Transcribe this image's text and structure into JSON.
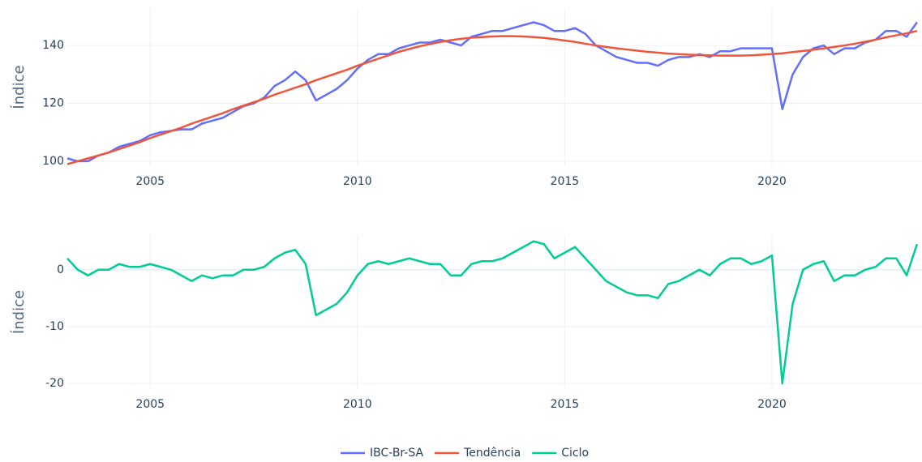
{
  "chart_data": [
    {
      "type": "line",
      "ylabel": "Índice",
      "x": [
        2003,
        2003.25,
        2003.5,
        2003.75,
        2004,
        2004.25,
        2004.5,
        2004.75,
        2005,
        2005.25,
        2005.5,
        2005.75,
        2006,
        2006.25,
        2006.5,
        2006.75,
        2007,
        2007.25,
        2007.5,
        2007.75,
        2008,
        2008.25,
        2008.5,
        2008.75,
        2009,
        2009.25,
        2009.5,
        2009.75,
        2010,
        2010.25,
        2010.5,
        2010.75,
        2011,
        2011.25,
        2011.5,
        2011.75,
        2012,
        2012.25,
        2012.5,
        2012.75,
        2013,
        2013.25,
        2013.5,
        2013.75,
        2014,
        2014.25,
        2014.5,
        2014.75,
        2015,
        2015.25,
        2015.5,
        2015.75,
        2016,
        2016.25,
        2016.5,
        2016.75,
        2017,
        2017.25,
        2017.5,
        2017.75,
        2018,
        2018.25,
        2018.5,
        2018.75,
        2019,
        2019.25,
        2019.5,
        2019.75,
        2020,
        2020.25,
        2020.5,
        2020.75,
        2021,
        2021.25,
        2021.5,
        2021.75,
        2022,
        2022.25,
        2022.5,
        2022.75,
        2023,
        2023.25,
        2023.5
      ],
      "series": [
        {
          "name": "IBC-Br-SA",
          "color": "#636efa",
          "values": [
            101,
            100,
            100,
            102,
            103,
            105,
            106,
            107,
            109,
            110,
            110.5,
            111,
            111,
            113,
            114,
            115,
            117,
            119,
            120,
            122,
            126,
            128,
            131,
            128,
            121,
            123,
            125,
            128,
            132,
            135,
            137,
            137,
            139,
            140,
            141,
            141,
            142,
            141,
            140,
            143,
            144,
            145,
            145,
            146,
            147,
            148,
            147,
            145,
            145,
            146,
            144,
            140,
            138,
            136,
            135,
            134,
            134,
            133,
            135,
            136,
            136,
            137,
            136,
            138,
            138,
            139,
            139,
            139,
            139,
            118,
            130,
            136,
            139,
            140,
            137,
            139,
            139,
            141,
            142,
            145,
            145,
            143,
            148
          ]
        },
        {
          "name": "Tendência",
          "color": "#ef553b",
          "values": [
            99,
            100,
            101,
            102,
            103,
            104.2,
            105.4,
            106.6,
            108,
            109.2,
            110.4,
            111.6,
            113,
            114.2,
            115.4,
            116.6,
            118,
            119.2,
            120.4,
            121.6,
            123,
            124.2,
            125.4,
            126.6,
            128,
            129.2,
            130.4,
            131.6,
            133,
            134.2,
            135.4,
            136.6,
            137.8,
            138.8,
            139.7,
            140.5,
            141.2,
            141.8,
            142.3,
            142.7,
            142.9,
            143.1,
            143.2,
            143.2,
            143.1,
            142.9,
            142.6,
            142.2,
            141.7,
            141.2,
            140.6,
            140,
            139.5,
            139,
            138.6,
            138.2,
            137.8,
            137.5,
            137.2,
            137,
            136.8,
            136.7,
            136.6,
            136.5,
            136.5,
            136.5,
            136.6,
            136.8,
            137,
            137.3,
            137.7,
            138.1,
            138.5,
            139,
            139.5,
            140,
            140.6,
            141.3,
            142,
            142.8,
            143.5,
            144.2,
            145
          ]
        }
      ],
      "xlim": [
        2003,
        2023.62
      ],
      "xticks": [
        2005,
        2010,
        2015,
        2020
      ],
      "ylim": [
        98.3,
        152.9
      ],
      "yticks": [
        100,
        120,
        140
      ],
      "grid": true
    },
    {
      "type": "line",
      "ylabel": "Índice",
      "x": [
        2003,
        2003.25,
        2003.5,
        2003.75,
        2004,
        2004.25,
        2004.5,
        2004.75,
        2005,
        2005.25,
        2005.5,
        2005.75,
        2006,
        2006.25,
        2006.5,
        2006.75,
        2007,
        2007.25,
        2007.5,
        2007.75,
        2008,
        2008.25,
        2008.5,
        2008.75,
        2009,
        2009.25,
        2009.5,
        2009.75,
        2010,
        2010.25,
        2010.5,
        2010.75,
        2011,
        2011.25,
        2011.5,
        2011.75,
        2012,
        2012.25,
        2012.5,
        2012.75,
        2013,
        2013.25,
        2013.5,
        2013.75,
        2014,
        2014.25,
        2014.5,
        2014.75,
        2015,
        2015.25,
        2015.5,
        2015.75,
        2016,
        2016.25,
        2016.5,
        2016.75,
        2017,
        2017.25,
        2017.5,
        2017.75,
        2018,
        2018.25,
        2018.5,
        2018.75,
        2019,
        2019.25,
        2019.5,
        2019.75,
        2020,
        2020.25,
        2020.5,
        2020.75,
        2021,
        2021.25,
        2021.5,
        2021.75,
        2022,
        2022.25,
        2022.5,
        2022.75,
        2023,
        2023.25,
        2023.5
      ],
      "series": [
        {
          "name": "Ciclo",
          "color": "#00cc96",
          "values": [
            2,
            0,
            -1,
            0,
            0,
            1,
            0.5,
            0.5,
            1,
            0.5,
            0,
            -1,
            -2,
            -1,
            -1.5,
            -1,
            -1,
            0,
            0,
            0.5,
            2,
            3,
            3.5,
            1,
            -8,
            -7,
            -6,
            -4,
            -1,
            1,
            1.5,
            1,
            1.5,
            2,
            1.5,
            1,
            1,
            -1,
            -1,
            1,
            1.5,
            1.5,
            2,
            3,
            4,
            5,
            4.5,
            2,
            3,
            4,
            2,
            0,
            -2,
            -3,
            -4,
            -4.5,
            -4.5,
            -5,
            -2.5,
            -2,
            -1,
            0,
            -1,
            1,
            2,
            2,
            1,
            1.5,
            2.5,
            -20,
            -6,
            0,
            1,
            1.5,
            -2,
            -1,
            -1,
            0,
            0.5,
            2,
            2,
            -1,
            4.5
          ]
        }
      ],
      "xlim": [
        2003,
        2023.62
      ],
      "xticks": [
        2005,
        2010,
        2015,
        2020
      ],
      "ylim": [
        -21,
        6.1
      ],
      "yticks": [
        -20,
        -10,
        0
      ],
      "grid": true
    }
  ]
}
